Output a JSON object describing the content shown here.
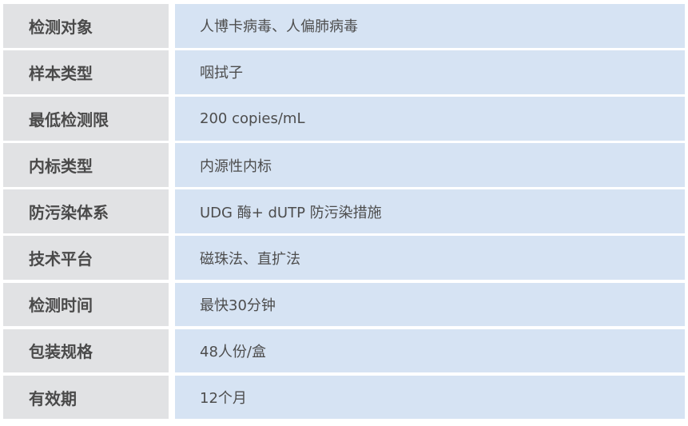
{
  "rows": [
    {
      "label": "检测对象",
      "value": "人博卡病毒、人偏肺病毒"
    },
    {
      "label": "样本类型",
      "value": "咽拭子"
    },
    {
      "label": "最低检测限",
      "value": "200 copies/mL"
    },
    {
      "label": "内标类型",
      "value": "内源性内标"
    },
    {
      "label": "防污染体系",
      "value": "UDG 酶+ dUTP 防污染措施"
    },
    {
      "label": "技术平台",
      "value": "磁珠法、直扩法"
    },
    {
      "label": "检测时间",
      "value": "最快30分钟"
    },
    {
      "label": "包装规格",
      "value": "48人份/盒"
    },
    {
      "label": "有效期",
      "value": "12个月"
    }
  ],
  "colors": {
    "label_bg": "#e1e2e4",
    "value_bg": "#d6e3f3",
    "text": "#4a4a4a"
  }
}
